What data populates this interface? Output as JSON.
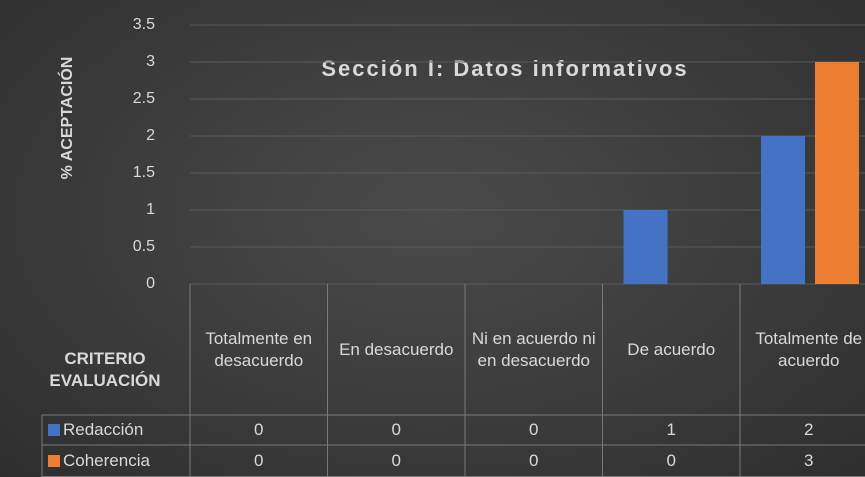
{
  "chart_data": {
    "type": "bar",
    "title": "Sección I: Datos informativos",
    "y_axis_label": "% ACEPTACIÓN",
    "x_axis_label": "CRITERIO EVALUACIÓN",
    "categories": [
      "Totalmente en desacuerdo",
      "En desacuerdo",
      "Ni en acuerdo ni en desacuerdo",
      "De acuerdo",
      "Totalmente de acuerdo"
    ],
    "series": [
      {
        "name": "Redacción",
        "color": "#4472c4",
        "values": [
          0,
          0,
          0,
          1,
          2
        ]
      },
      {
        "name": "Coherencia",
        "color": "#ed7d31",
        "values": [
          0,
          0,
          0,
          0,
          3
        ]
      }
    ],
    "ylim": [
      0,
      3.5
    ],
    "yticks": [
      0,
      0.5,
      1,
      1.5,
      2,
      2.5,
      3,
      3.5
    ],
    "grid": true,
    "data_table": true
  }
}
